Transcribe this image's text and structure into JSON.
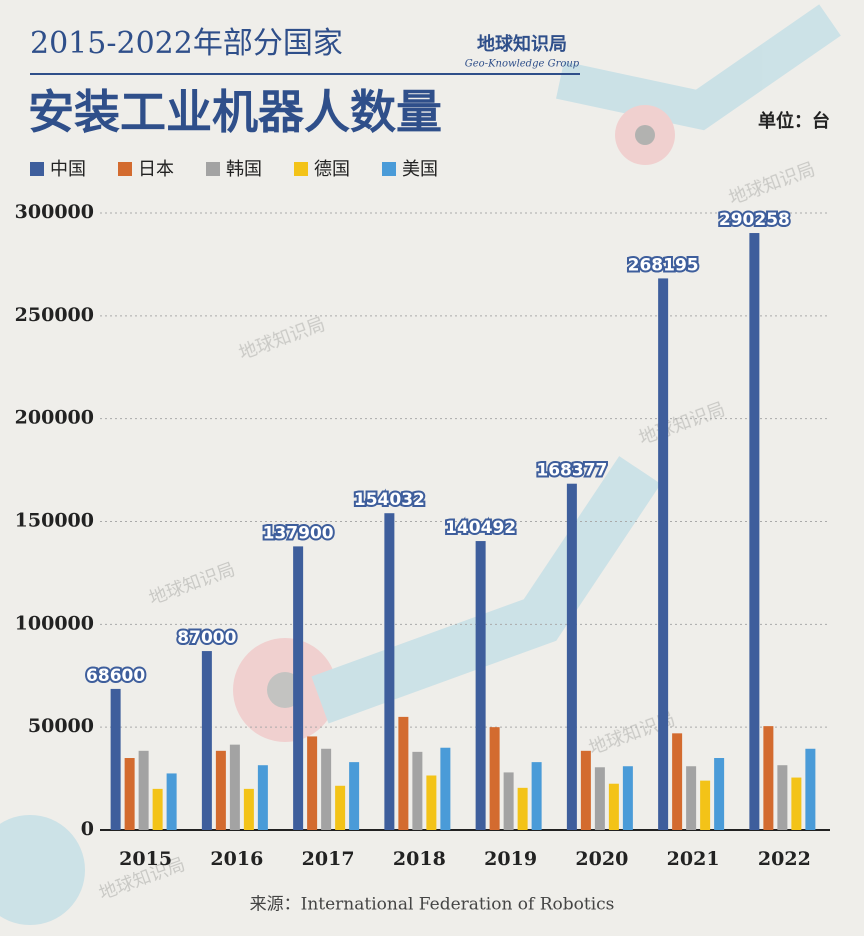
{
  "chart_data": {
    "type": "bar",
    "title": "2015-2022年部分国家",
    "subtitle": "安装工业机器人数量",
    "brand": "地球知识局",
    "brand_en": "Geo-Knowledge Group",
    "unit": "单位：台",
    "source": "来源：International Federation of Robotics",
    "categories": [
      "2015",
      "2016",
      "2017",
      "2018",
      "2019",
      "2020",
      "2021",
      "2022"
    ],
    "series": [
      {
        "name": "中国",
        "color": "#3e5e9c",
        "values": [
          68600,
          87000,
          137900,
          154032,
          140492,
          168377,
          268195,
          290258
        ]
      },
      {
        "name": "日本",
        "color": "#d36b2f",
        "values": [
          35000,
          38500,
          45500,
          55000,
          50000,
          38500,
          47000,
          50500
        ]
      },
      {
        "name": "韩国",
        "color": "#a3a3a3",
        "values": [
          38500,
          41500,
          39500,
          38000,
          28000,
          30500,
          31000,
          31500
        ]
      },
      {
        "name": "德国",
        "color": "#f3c318",
        "values": [
          20000,
          20000,
          21500,
          26500,
          20500,
          22500,
          24000,
          25500
        ]
      },
      {
        "name": "美国",
        "color": "#4a9bd8",
        "values": [
          27500,
          31500,
          33000,
          40000,
          33000,
          31000,
          35000,
          39500
        ]
      }
    ],
    "labeled_series": 0,
    "ylim": [
      0,
      300000
    ],
    "yticks": [
      0,
      50000,
      100000,
      150000,
      200000,
      250000,
      300000
    ],
    "grid": true
  }
}
